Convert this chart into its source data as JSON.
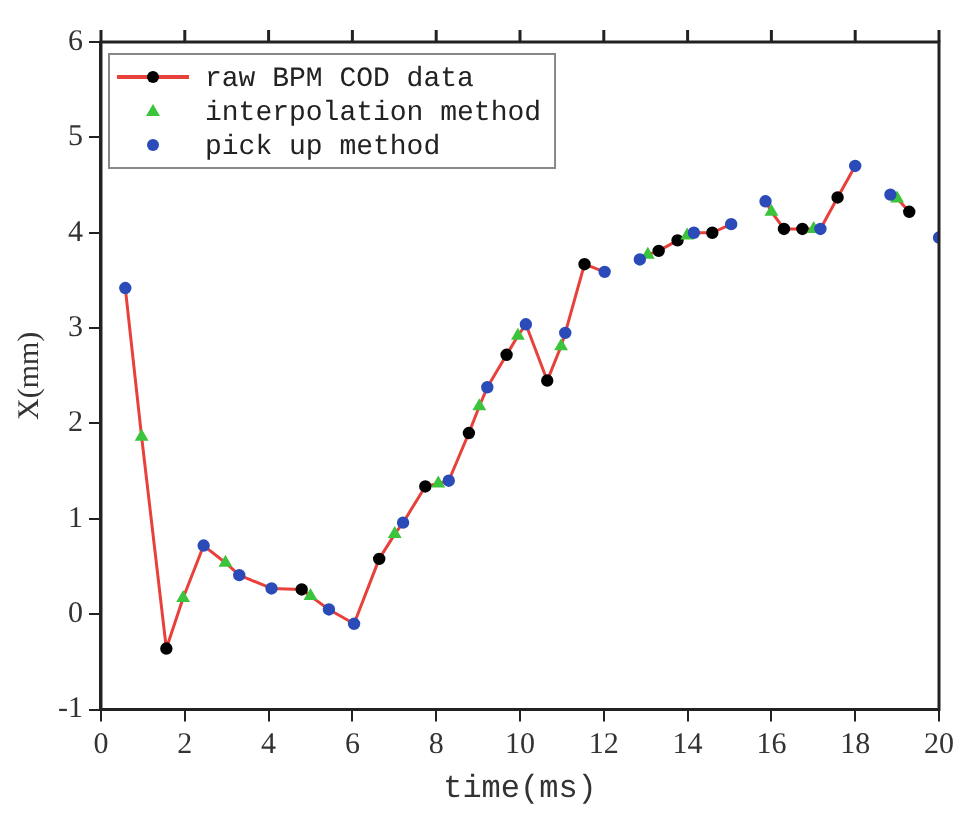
{
  "chart_data": {
    "type": "line",
    "xlabel": "time(ms)",
    "ylabel": "X(mm)",
    "xlim": [
      0,
      20
    ],
    "xticks": [
      0,
      2,
      4,
      6,
      8,
      10,
      12,
      14,
      16,
      18,
      20
    ],
    "ylim": [
      -1,
      6
    ],
    "yticks": [
      -1,
      0,
      1,
      2,
      3,
      4,
      5,
      6
    ],
    "grid": false,
    "legend": "top left",
    "series": [
      {
        "color": "#e8403a",
        "marker": "none",
        "line_style": "solid",
        "x": [
          0.58,
          0.97,
          1.56,
          1.96,
          2.45,
          2.97,
          3.3,
          4.07,
          4.79,
          5.0,
          5.44,
          6.04,
          6.64,
          7.01,
          7.21,
          7.74,
          8.05,
          8.3,
          8.78,
          9.03,
          9.22,
          9.68,
          9.95,
          10.14,
          10.65,
          10.98,
          11.08,
          11.54,
          12.02,
          12.44,
          12.86,
          13.05,
          13.31,
          13.76,
          13.99,
          14.15,
          14.59,
          15.04,
          15.45,
          15.86,
          16.0,
          16.3,
          16.74,
          17.01,
          17.17,
          17.58,
          18.0,
          18.42,
          18.84,
          19.0,
          19.29
        ],
        "values": [
          3.42,
          1.86,
          -0.36,
          0.17,
          0.72,
          0.54,
          0.41,
          0.27,
          0.26,
          0.19,
          0.05,
          -0.1,
          0.58,
          0.84,
          0.96,
          1.34,
          1.37,
          1.4,
          1.9,
          2.18,
          2.38,
          2.72,
          2.92,
          3.04,
          2.45,
          2.81,
          2.95,
          3.67,
          3.59,
          null,
          3.72,
          3.77,
          3.81,
          3.92,
          3.97,
          4.0,
          4.0,
          4.09,
          null,
          4.33,
          4.22,
          4.04,
          4.04,
          4.04,
          4.04,
          4.37,
          4.7,
          null,
          4.4,
          4.36,
          4.22
        ]
      },
      {
        "name": "raw BPM COD data",
        "type": "scatter",
        "color": "#000000",
        "marker": "circle",
        "x": [
          1.56,
          4.79,
          6.64,
          7.74,
          8.78,
          9.68,
          10.65,
          11.54,
          13.31,
          13.76,
          14.59,
          16.3,
          16.74,
          17.58,
          19.29
        ],
        "values": [
          -0.36,
          0.26,
          0.58,
          1.34,
          1.9,
          2.72,
          2.45,
          3.67,
          3.81,
          3.92,
          4.0,
          4.04,
          4.04,
          4.37,
          4.22
        ]
      },
      {
        "name": "interpolation method",
        "type": "scatter",
        "color": "#3cc43c",
        "marker": "triangle",
        "x": [
          0.97,
          1.96,
          2.97,
          5.0,
          7.01,
          8.05,
          9.03,
          9.95,
          10.98,
          13.05,
          13.99,
          16.0,
          17.01,
          19.0
        ],
        "values": [
          1.86,
          0.17,
          0.54,
          0.19,
          0.84,
          1.37,
          2.18,
          2.92,
          2.81,
          3.77,
          3.97,
          4.22,
          4.04,
          4.36
        ]
      },
      {
        "name": "pick up method",
        "type": "scatter",
        "color": "#2b4bb8",
        "marker": "circle",
        "x": [
          0.58,
          2.45,
          3.3,
          4.07,
          5.44,
          6.04,
          7.21,
          8.3,
          9.22,
          10.14,
          11.08,
          12.02,
          12.86,
          14.15,
          15.04,
          15.86,
          17.17,
          18.0,
          18.84,
          20.0
        ],
        "values": [
          3.42,
          0.72,
          0.41,
          0.27,
          0.05,
          -0.1,
          0.96,
          1.4,
          2.38,
          3.04,
          2.95,
          3.59,
          3.72,
          4.0,
          4.09,
          4.33,
          4.04,
          4.7,
          4.4,
          3.95
        ]
      }
    ]
  }
}
